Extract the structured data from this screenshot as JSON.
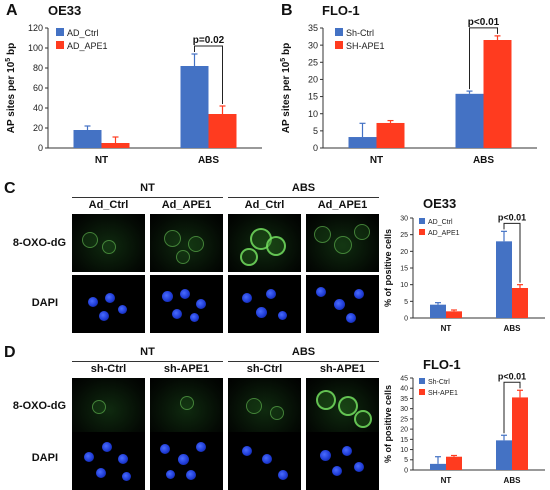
{
  "panels": {
    "A": {
      "letter": "A",
      "title": "OE33"
    },
    "B": {
      "letter": "B",
      "title": "FLO-1"
    },
    "C": {
      "letter": "C",
      "chart_title": "OE33",
      "groups": [
        "NT",
        "ABS"
      ],
      "cols": [
        "Ad_Ctrl",
        "Ad_APE1",
        "Ad_Ctrl",
        "Ad_APE1"
      ],
      "rows": [
        "8-OXO-dG",
        "DAPI"
      ]
    },
    "D": {
      "letter": "D",
      "chart_title": "FLO-1",
      "groups": [
        "NT",
        "ABS"
      ],
      "cols": [
        "sh-Ctrl",
        "sh-APE1",
        "sh-Ctrl",
        "sh-APE1"
      ],
      "rows": [
        "8-OXO-dG",
        "DAPI"
      ]
    }
  },
  "colors": {
    "series1": "#4472C4",
    "series2": "#FF3B1F",
    "axis": "#333333"
  },
  "chart_data": [
    {
      "id": "A",
      "type": "bar",
      "title": "OE33",
      "ylabel": "AP sites per 10^5 bp",
      "ylabel_base": "AP sites per 10",
      "ylabel_sup": "5",
      "ylabel_tail": " bp",
      "categories": [
        "NT",
        "ABS"
      ],
      "ylim": [
        0,
        120
      ],
      "yticks": [
        0,
        20,
        40,
        60,
        80,
        100,
        120
      ],
      "series": [
        {
          "name": "AD_Ctrl",
          "values": [
            18,
            82
          ],
          "errors": [
            4,
            12
          ]
        },
        {
          "name": "AD_APE1",
          "values": [
            5,
            34
          ],
          "errors": [
            6,
            8
          ]
        }
      ],
      "annotation": {
        "text": "p=0.02",
        "category": "ABS"
      },
      "legend": "top-left"
    },
    {
      "id": "B",
      "type": "bar",
      "title": "FLO-1",
      "ylabel": "AP sites per 10^5 bp",
      "ylabel_base": "AP sites per 10",
      "ylabel_sup": "5",
      "ylabel_tail": " bp",
      "categories": [
        "NT",
        "ABS"
      ],
      "ylim": [
        0,
        35
      ],
      "yticks": [
        0,
        5,
        10,
        15,
        20,
        25,
        30,
        35
      ],
      "series": [
        {
          "name": "Sh-Ctrl",
          "values": [
            3.2,
            15.8
          ],
          "errors": [
            4.0,
            0.8
          ]
        },
        {
          "name": "SH-APE1",
          "values": [
            7.3,
            31.5
          ],
          "errors": [
            0.7,
            1.2
          ]
        }
      ],
      "annotation": {
        "text": "p<0.01",
        "category": "ABS"
      },
      "legend": "top-left"
    },
    {
      "id": "C",
      "type": "bar",
      "title": "OE33",
      "ylabel": "% of positive cells",
      "categories": [
        "NT",
        "ABS"
      ],
      "ylim": [
        0,
        30
      ],
      "yticks": [
        0,
        5,
        10,
        15,
        20,
        25,
        30
      ],
      "series": [
        {
          "name": "AD_Ctrl",
          "values": [
            4,
            23
          ],
          "errors": [
            0.6,
            3
          ]
        },
        {
          "name": "AD_APE1",
          "values": [
            2,
            9
          ],
          "errors": [
            0.4,
            1
          ]
        }
      ],
      "annotation": {
        "text": "p<0.01",
        "category": "ABS"
      },
      "legend": "top-left"
    },
    {
      "id": "D",
      "type": "bar",
      "title": "FLO-1",
      "ylabel": "% of positive cells",
      "categories": [
        "NT",
        "ABS"
      ],
      "ylim": [
        0,
        45
      ],
      "yticks": [
        0,
        5,
        10,
        15,
        20,
        25,
        30,
        35,
        40,
        45
      ],
      "series": [
        {
          "name": "Sh-Ctrl",
          "values": [
            3,
            14.5
          ],
          "errors": [
            3.5,
            2.5
          ]
        },
        {
          "name": "SH-APE1",
          "values": [
            6.5,
            35.5
          ],
          "errors": [
            0.6,
            3.5
          ]
        }
      ],
      "annotation": {
        "text": "p<0.01",
        "category": "ABS"
      },
      "legend": "top-left"
    }
  ]
}
